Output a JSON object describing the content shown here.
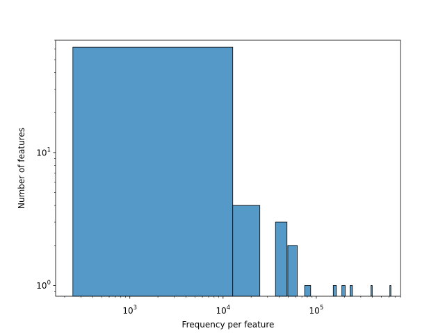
{
  "chart_data": {
    "type": "bar",
    "title": "",
    "xlabel": "Frequency per feature",
    "ylabel": "Number of features",
    "xscale": "log",
    "yscale": "log",
    "xlim": [
      160,
      800000
    ],
    "ylim": [
      0.83,
      70
    ],
    "grid": false,
    "bar_color": "#5599c8",
    "edge_color": "#000000",
    "x_tick_labels": [
      {
        "base": "10",
        "exp": "3",
        "value": 1000
      },
      {
        "base": "10",
        "exp": "4",
        "value": 10000
      },
      {
        "base": "10",
        "exp": "5",
        "value": 100000
      }
    ],
    "y_tick_labels": [
      {
        "base": "10",
        "exp": "0",
        "value": 1
      },
      {
        "base": "10",
        "exp": "1",
        "value": 10
      }
    ],
    "bins": [
      {
        "x0": 245,
        "x1": 12700,
        "count": 62
      },
      {
        "x0": 12700,
        "x1": 24800,
        "count": 4
      },
      {
        "x0": 36500,
        "x1": 48500,
        "count": 3
      },
      {
        "x0": 49500,
        "x1": 62500,
        "count": 2
      },
      {
        "x0": 75000,
        "x1": 87000,
        "count": 1
      },
      {
        "x0": 152000,
        "x1": 164000,
        "count": 1
      },
      {
        "x0": 188000,
        "x1": 204000,
        "count": 1
      },
      {
        "x0": 230000,
        "x1": 244000,
        "count": 1
      },
      {
        "x0": 385000,
        "x1": 398000,
        "count": 1
      },
      {
        "x0": 615000,
        "x1": 625000,
        "count": 1
      }
    ]
  }
}
